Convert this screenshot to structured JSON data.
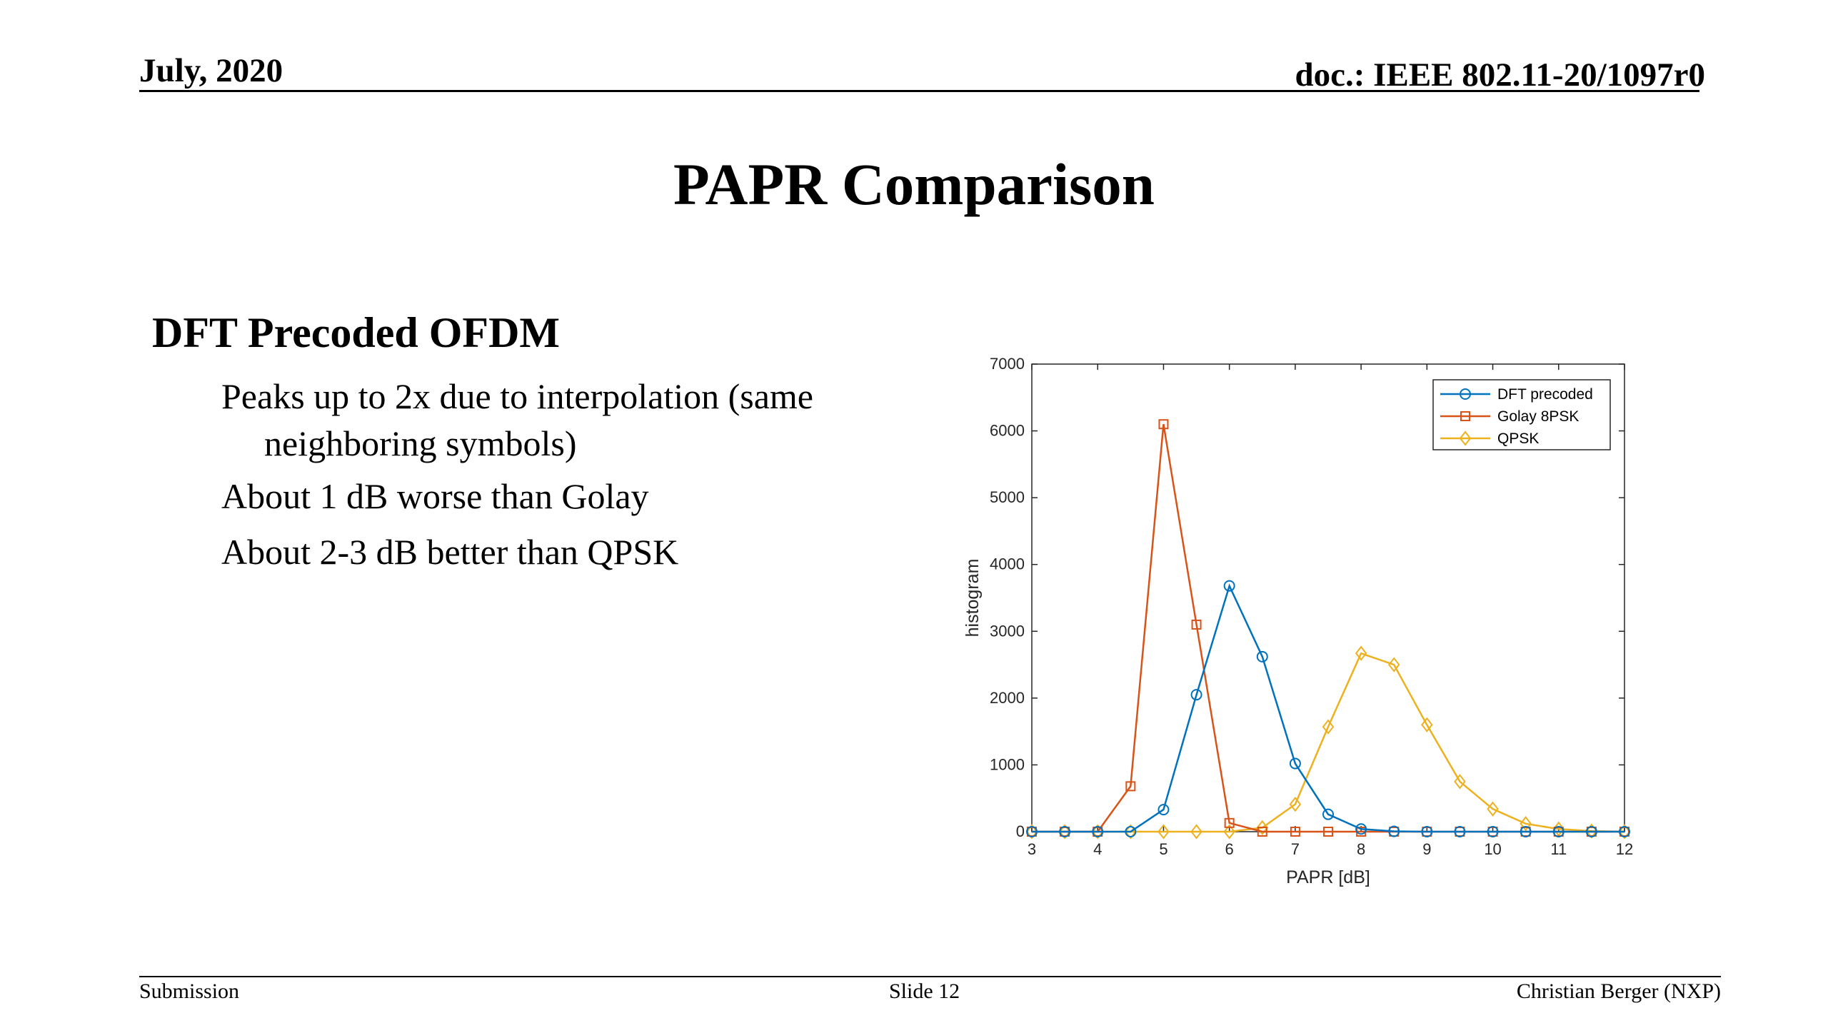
{
  "header": {
    "date": "July, 2020",
    "doc": "doc.: IEEE 802.11-20/1097r0"
  },
  "title": "PAPR Comparison",
  "content": {
    "heading": "DFT Precoded OFDM",
    "bullets": [
      {
        "line1": "Peaks up to 2x due to interpolation (same",
        "line2": "neighboring symbols)"
      },
      {
        "line1": "About 1 dB worse than Golay"
      },
      {
        "line1": "About 2-3 dB better than QPSK"
      }
    ]
  },
  "footer": {
    "left": "Submission",
    "center": "Slide 12",
    "right": "Christian Berger (NXP)"
  },
  "chart_data": {
    "type": "line",
    "xlabel": "PAPR [dB]",
    "ylabel": "histogram",
    "xlim": [
      3,
      12
    ],
    "ylim": [
      0,
      7000
    ],
    "xticks": [
      3,
      4,
      5,
      6,
      7,
      8,
      9,
      10,
      11,
      12
    ],
    "yticks": [
      0,
      1000,
      2000,
      3000,
      4000,
      5000,
      6000,
      7000
    ],
    "legend_position": "top-right",
    "x": [
      3,
      3.5,
      4,
      4.5,
      5,
      5.5,
      6,
      6.5,
      7,
      7.5,
      8,
      8.5,
      9,
      9.5,
      10,
      10.5,
      11,
      11.5,
      12
    ],
    "series": [
      {
        "name": "DFT precoded",
        "color": "#0072BD",
        "marker": "circle",
        "values": [
          0,
          0,
          0,
          0,
          330,
          2050,
          3680,
          2620,
          1020,
          260,
          40,
          5,
          0,
          0,
          0,
          0,
          0,
          0,
          0
        ]
      },
      {
        "name": "Golay 8PSK",
        "color": "#D95319",
        "marker": "square",
        "values": [
          0,
          0,
          0,
          680,
          6100,
          3100,
          130,
          0,
          0,
          0,
          0,
          0,
          0,
          0,
          0,
          0,
          0,
          0,
          0
        ]
      },
      {
        "name": "QPSK",
        "color": "#EDB120",
        "marker": "diamond",
        "values": [
          0,
          0,
          0,
          0,
          0,
          0,
          0,
          60,
          410,
          1570,
          2670,
          2500,
          1600,
          750,
          340,
          120,
          40,
          10,
          0
        ]
      }
    ]
  }
}
